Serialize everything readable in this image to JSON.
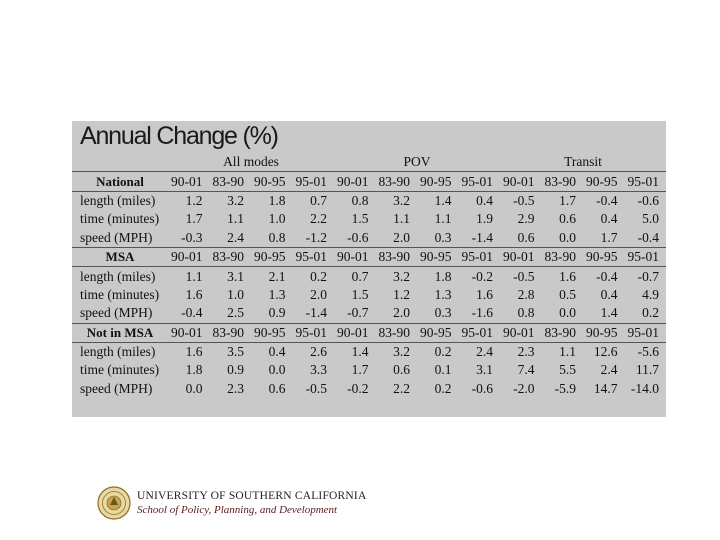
{
  "title": "Annual Change (%)",
  "groups": [
    "All modes",
    "POV",
    "Transit"
  ],
  "sections": [
    {
      "name": "National",
      "periods": [
        "90-01",
        "83-90",
        "90-95",
        "95-01",
        "90-01",
        "83-90",
        "90-95",
        "95-01",
        "90-01",
        "83-90",
        "90-95",
        "95-01"
      ],
      "rows": [
        {
          "label": "length (miles)",
          "values": [
            "1.2",
            "3.2",
            "1.8",
            "0.7",
            "0.8",
            "3.2",
            "1.4",
            "0.4",
            "-0.5",
            "1.7",
            "-0.4",
            "-0.6"
          ]
        },
        {
          "label": "time (minutes)",
          "values": [
            "1.7",
            "1.1",
            "1.0",
            "2.2",
            "1.5",
            "1.1",
            "1.1",
            "1.9",
            "2.9",
            "0.6",
            "0.4",
            "5.0"
          ]
        },
        {
          "label": "speed (MPH)",
          "values": [
            "-0.3",
            "2.4",
            "0.8",
            "-1.2",
            "-0.6",
            "2.0",
            "0.3",
            "-1.4",
            "0.6",
            "0.0",
            "1.7",
            "-0.4"
          ]
        }
      ]
    },
    {
      "name": "MSA",
      "periods": [
        "90-01",
        "83-90",
        "90-95",
        "95-01",
        "90-01",
        "83-90",
        "90-95",
        "95-01",
        "90-01",
        "83-90",
        "90-95",
        "95-01"
      ],
      "rows": [
        {
          "label": "length (miles)",
          "values": [
            "1.1",
            "3.1",
            "2.1",
            "0.2",
            "0.7",
            "3.2",
            "1.8",
            "-0.2",
            "-0.5",
            "1.6",
            "-0.4",
            "-0.7"
          ]
        },
        {
          "label": "time (minutes)",
          "values": [
            "1.6",
            "1.0",
            "1.3",
            "2.0",
            "1.5",
            "1.2",
            "1.3",
            "1.6",
            "2.8",
            "0.5",
            "0.4",
            "4.9"
          ]
        },
        {
          "label": "speed (MPH)",
          "values": [
            "-0.4",
            "2.5",
            "0.9",
            "-1.4",
            "-0.7",
            "2.0",
            "0.3",
            "-1.6",
            "0.8",
            "0.0",
            "1.4",
            "0.2"
          ]
        }
      ]
    },
    {
      "name": "Not in MSA",
      "periods": [
        "90-01",
        "83-90",
        "90-95",
        "95-01",
        "90-01",
        "83-90",
        "90-95",
        "95-01",
        "90-01",
        "83-90",
        "90-95",
        "95-01"
      ],
      "rows": [
        {
          "label": "length (miles)",
          "values": [
            "1.6",
            "3.5",
            "0.4",
            "2.6",
            "1.4",
            "3.2",
            "0.2",
            "2.4",
            "2.3",
            "1.1",
            "12.6",
            "-5.6"
          ]
        },
        {
          "label": "time (minutes)",
          "values": [
            "1.8",
            "0.9",
            "0.0",
            "3.3",
            "1.7",
            "0.6",
            "0.1",
            "3.1",
            "7.4",
            "5.5",
            "2.4",
            "11.7"
          ]
        },
        {
          "label": "speed (MPH)",
          "values": [
            "0.0",
            "2.3",
            "0.6",
            "-0.5",
            "-0.2",
            "2.2",
            "0.2",
            "-0.6",
            "-2.0",
            "-5.9",
            "14.7",
            "-14.0"
          ]
        }
      ]
    }
  ],
  "footer": {
    "university": "UNIVERSITY OF SOUTHERN CALIFORNIA",
    "school": "School of Policy, Planning, and Development",
    "seal_icon": "usc-seal-icon"
  },
  "colors": {
    "panel": "#c9c9c9",
    "school_text": "#5b2020"
  }
}
